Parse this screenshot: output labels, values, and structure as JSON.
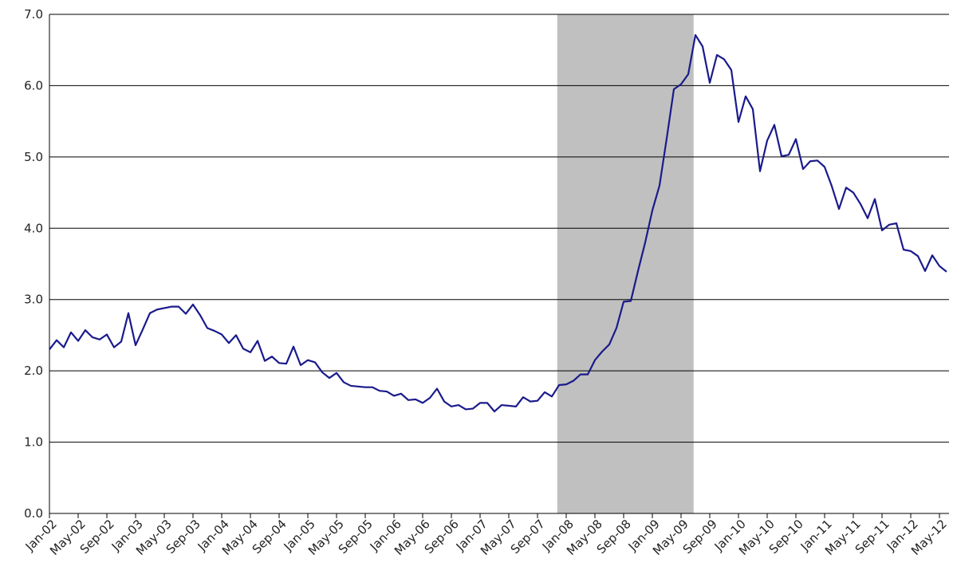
{
  "chart_data": {
    "type": "line",
    "categories": [
      "Jan-02",
      null,
      null,
      null,
      "May-02",
      null,
      null,
      null,
      "Sep-02",
      null,
      null,
      null,
      "Jan-03",
      null,
      null,
      null,
      "May-03",
      null,
      null,
      null,
      "Sep-03",
      null,
      null,
      null,
      "Jan-04",
      null,
      null,
      null,
      "May-04",
      null,
      null,
      null,
      "Sep-04",
      null,
      null,
      null,
      "Jan-05",
      null,
      null,
      null,
      "May-05",
      null,
      null,
      null,
      "Sep-05",
      null,
      null,
      null,
      "Jan-06",
      null,
      null,
      null,
      "May-06",
      null,
      null,
      null,
      "Sep-06",
      null,
      null,
      null,
      "Jan-07",
      null,
      null,
      null,
      "May-07",
      null,
      null,
      null,
      "Sep-07",
      null,
      null,
      null,
      "Jan-08",
      null,
      null,
      null,
      "May-08",
      null,
      null,
      null,
      "Sep-08",
      null,
      null,
      null,
      "Jan-09",
      null,
      null,
      null,
      "May-09",
      null,
      null,
      null,
      "Sep-09",
      null,
      null,
      null,
      "Jan-10",
      null,
      null,
      null,
      "May-10",
      null,
      null,
      null,
      "Sep-10",
      null,
      null,
      null,
      "Jan-11",
      null,
      null,
      null,
      "May-11",
      null,
      null,
      null,
      "Sep-11",
      null,
      null,
      null,
      "Jan-12",
      null,
      null,
      null,
      "May-12",
      null
    ],
    "series": [
      {
        "color": "#1a1a8c",
        "values": [
          2.3,
          2.43,
          2.33,
          2.54,
          2.42,
          2.57,
          2.47,
          2.44,
          2.51,
          2.33,
          2.41,
          2.81,
          2.36,
          2.58,
          2.81,
          2.86,
          2.88,
          2.9,
          2.9,
          2.8,
          2.93,
          2.78,
          2.6,
          2.56,
          2.51,
          2.39,
          2.5,
          2.31,
          2.26,
          2.42,
          2.14,
          2.2,
          2.11,
          2.1,
          2.34,
          2.08,
          2.15,
          2.12,
          1.98,
          1.9,
          1.97,
          1.84,
          1.79,
          1.78,
          1.77,
          1.77,
          1.72,
          1.71,
          1.65,
          1.68,
          1.59,
          1.6,
          1.55,
          1.62,
          1.75,
          1.57,
          1.5,
          1.52,
          1.46,
          1.47,
          1.55,
          1.55,
          1.43,
          1.52,
          1.51,
          1.5,
          1.63,
          1.57,
          1.58,
          1.7,
          1.64,
          1.8,
          1.81,
          1.86,
          1.95,
          1.95,
          2.15,
          2.27,
          2.37,
          2.6,
          2.97,
          2.98,
          3.4,
          3.8,
          4.25,
          4.6,
          5.26,
          5.95,
          6.02,
          6.16,
          6.71,
          6.55,
          6.04,
          6.43,
          6.37,
          6.22,
          5.49,
          5.85,
          5.67,
          4.8,
          5.23,
          5.45,
          5.01,
          5.03,
          5.25,
          4.83,
          4.94,
          4.95,
          4.86,
          4.59,
          4.27,
          4.57,
          4.5,
          4.34,
          4.14,
          4.41,
          3.97,
          4.05,
          4.07,
          3.7,
          3.68,
          3.61,
          3.4,
          3.62,
          3.47,
          3.39
        ]
      }
    ],
    "shaded_span": [
      70.75,
      89.75
    ],
    "shade_color": "#c0c0c0",
    "ylim": [
      0,
      7
    ],
    "yticks": [
      {
        "value": 0,
        "label": "0.0"
      },
      {
        "value": 1,
        "label": "1.0"
      },
      {
        "value": 2,
        "label": "2.0"
      },
      {
        "value": 3,
        "label": "3.0"
      },
      {
        "value": 4,
        "label": "4.0"
      },
      {
        "value": 5,
        "label": "5.0"
      },
      {
        "value": 6,
        "label": "6.0"
      },
      {
        "value": 7,
        "label": "7.0"
      }
    ],
    "grid": true
  }
}
